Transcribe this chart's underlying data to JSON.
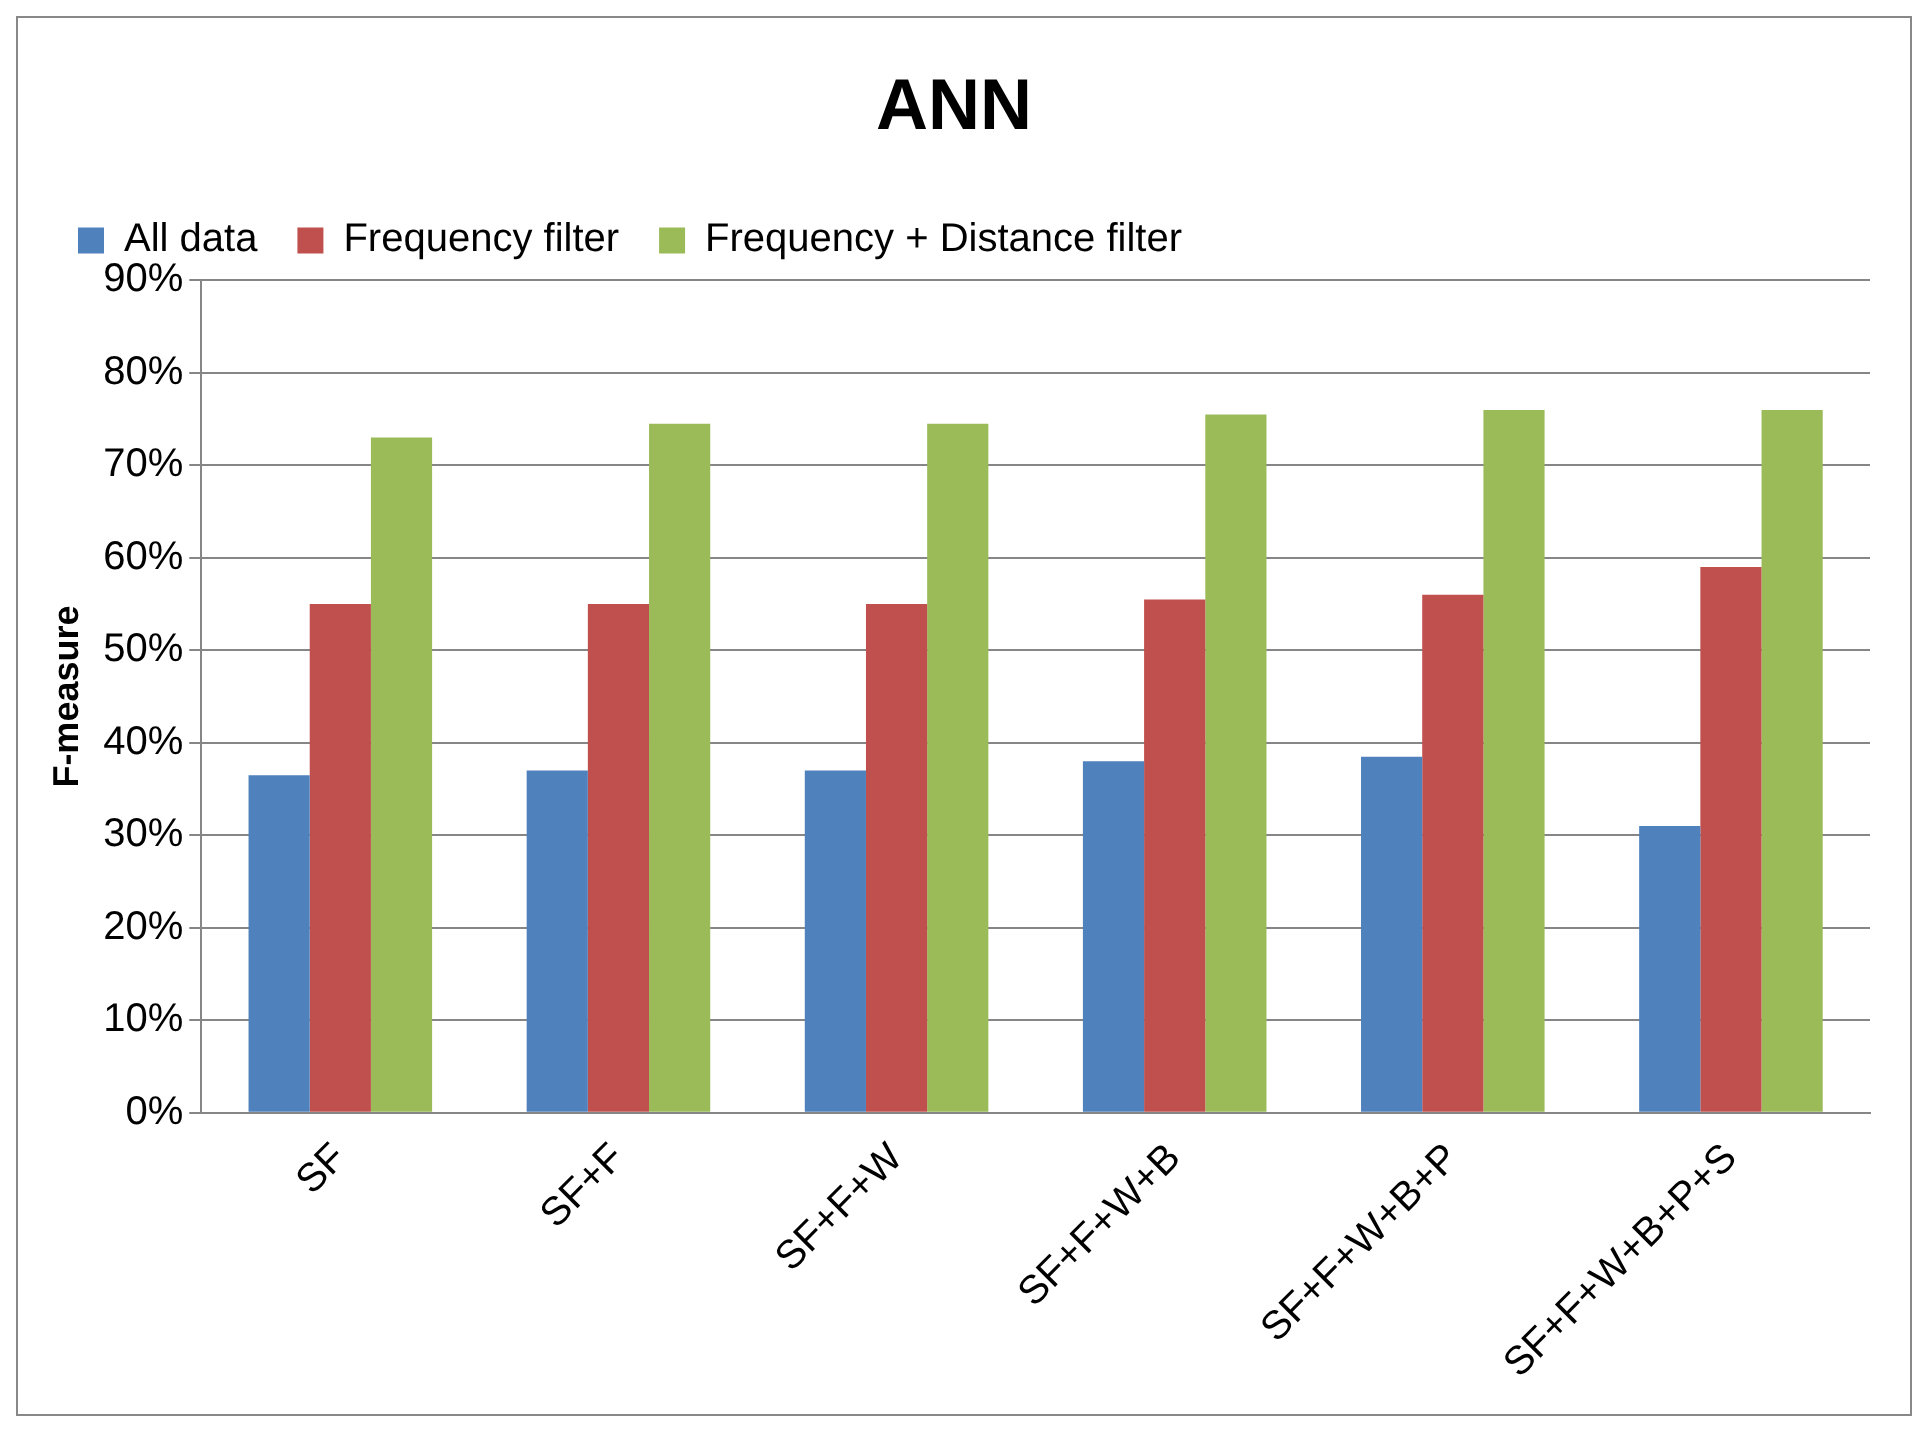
{
  "chart_data": {
    "type": "bar",
    "title": "ANN",
    "ylabel": "F-measure",
    "categories": [
      "SF",
      "SF+F",
      "SF+F+W",
      "SF+F+W+B",
      "SF+F+W+B+P",
      "SF+F+W+B+P+S"
    ],
    "series": [
      {
        "name": "All data",
        "color": "#4f81bd",
        "values": [
          36.5,
          37,
          37,
          38,
          38.5,
          31
        ]
      },
      {
        "name": "Frequency filter",
        "color": "#c0504d",
        "values": [
          55,
          55,
          55,
          55.5,
          56,
          59
        ]
      },
      {
        "name": "Frequency + Distance filter",
        "color": "#9bbb59",
        "values": [
          73,
          74.5,
          74.5,
          75.5,
          76,
          76
        ]
      }
    ],
    "ylim": [
      0,
      90
    ],
    "yticks": [
      {
        "value": 0,
        "label": "0%"
      },
      {
        "value": 10,
        "label": "10%"
      },
      {
        "value": 20,
        "label": "20%"
      },
      {
        "value": 30,
        "label": "30%"
      },
      {
        "value": 40,
        "label": "40%"
      },
      {
        "value": 50,
        "label": "50%"
      },
      {
        "value": 60,
        "label": "60%"
      },
      {
        "value": 70,
        "label": "70%"
      },
      {
        "value": 80,
        "label": "80%"
      },
      {
        "value": 90,
        "label": "90%"
      }
    ],
    "grid": "y",
    "legend": "top"
  }
}
